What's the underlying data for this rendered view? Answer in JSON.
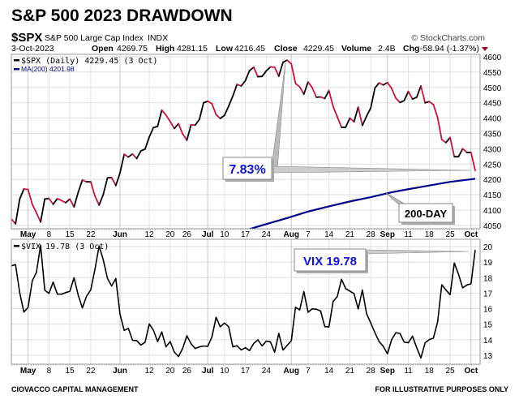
{
  "title": "S&P 500 2023 DRAWDOWN",
  "header": {
    "symbol": "$SPX",
    "name": "S&P 500 Large Cap Index",
    "exchange": "INDX",
    "copyright": "© StockCharts.com",
    "date": "3-Oct-2023",
    "open_label": "Open",
    "open": "4269.75",
    "high_label": "High",
    "high": "4281.15",
    "low_label": "Low",
    "low": "4216.45",
    "close_label": "Close",
    "close": "4229.45",
    "volume_label": "Volume",
    "volume": "2.4B",
    "chg_label": "Chg",
    "chg": "-58.94 (-1.37%)",
    "chg_color": "#a0002a"
  },
  "footer": {
    "left": "CIOVACCO CAPITAL MANAGEMENT",
    "right": "FOR ILLUSTRATIVE PURPOSES ONLY"
  },
  "annotations": {
    "drawdown": "7.83%",
    "ma_label": "200-DAY",
    "vix_label": "VIX 19.78",
    "text_color": "#1010e0"
  },
  "x_ticks": [
    {
      "date": "2023-05-01",
      "label": "May",
      "bold": true
    },
    {
      "date": "2023-05-08",
      "label": "8"
    },
    {
      "date": "2023-05-15",
      "label": "15"
    },
    {
      "date": "2023-05-22",
      "label": "22"
    },
    {
      "date": "2023-06-01",
      "label": "Jun",
      "bold": true
    },
    {
      "date": "2023-06-12",
      "label": "12"
    },
    {
      "date": "2023-06-20",
      "label": "20"
    },
    {
      "date": "2023-06-26",
      "label": "26"
    },
    {
      "date": "2023-07-03",
      "label": "Jul",
      "bold": true
    },
    {
      "date": "2023-07-10",
      "label": "10"
    },
    {
      "date": "2023-07-17",
      "label": "17"
    },
    {
      "date": "2023-07-24",
      "label": "24"
    },
    {
      "date": "2023-08-01",
      "label": "Aug",
      "bold": true
    },
    {
      "date": "2023-08-07",
      "label": "7"
    },
    {
      "date": "2023-08-14",
      "label": "14"
    },
    {
      "date": "2023-08-21",
      "label": "21"
    },
    {
      "date": "2023-08-28",
      "label": "28"
    },
    {
      "date": "2023-09-01",
      "label": "Sep",
      "bold": true
    },
    {
      "date": "2023-09-11",
      "label": "11"
    },
    {
      "date": "2023-09-18",
      "label": "18"
    },
    {
      "date": "2023-09-25",
      "label": "25"
    },
    {
      "date": "2023-10-02",
      "label": "Oct",
      "bold": true
    }
  ],
  "x": [
    "2023-04-25",
    "2023-04-26",
    "2023-04-27",
    "2023-04-28",
    "2023-05-01",
    "2023-05-02",
    "2023-05-03",
    "2023-05-04",
    "2023-05-05",
    "2023-05-08",
    "2023-05-09",
    "2023-05-10",
    "2023-05-11",
    "2023-05-12",
    "2023-05-15",
    "2023-05-16",
    "2023-05-17",
    "2023-05-18",
    "2023-05-19",
    "2023-05-22",
    "2023-05-23",
    "2023-05-24",
    "2023-05-25",
    "2023-05-26",
    "2023-05-30",
    "2023-05-31",
    "2023-06-01",
    "2023-06-02",
    "2023-06-05",
    "2023-06-06",
    "2023-06-07",
    "2023-06-08",
    "2023-06-09",
    "2023-06-12",
    "2023-06-13",
    "2023-06-14",
    "2023-06-15",
    "2023-06-16",
    "2023-06-20",
    "2023-06-21",
    "2023-06-22",
    "2023-06-23",
    "2023-06-26",
    "2023-06-27",
    "2023-06-28",
    "2023-06-29",
    "2023-06-30",
    "2023-07-03",
    "2023-07-05",
    "2023-07-06",
    "2023-07-07",
    "2023-07-10",
    "2023-07-11",
    "2023-07-12",
    "2023-07-13",
    "2023-07-14",
    "2023-07-17",
    "2023-07-18",
    "2023-07-19",
    "2023-07-20",
    "2023-07-21",
    "2023-07-24",
    "2023-07-25",
    "2023-07-26",
    "2023-07-27",
    "2023-07-28",
    "2023-07-31",
    "2023-08-01",
    "2023-08-02",
    "2023-08-03",
    "2023-08-04",
    "2023-08-07",
    "2023-08-08",
    "2023-08-09",
    "2023-08-10",
    "2023-08-11",
    "2023-08-14",
    "2023-08-15",
    "2023-08-16",
    "2023-08-17",
    "2023-08-18",
    "2023-08-21",
    "2023-08-22",
    "2023-08-23",
    "2023-08-24",
    "2023-08-25",
    "2023-08-28",
    "2023-08-29",
    "2023-08-30",
    "2023-08-31",
    "2023-09-01",
    "2023-09-05",
    "2023-09-06",
    "2023-09-07",
    "2023-09-08",
    "2023-09-11",
    "2023-09-12",
    "2023-09-13",
    "2023-09-14",
    "2023-09-15",
    "2023-09-18",
    "2023-09-19",
    "2023-09-20",
    "2023-09-21",
    "2023-09-22",
    "2023-09-25",
    "2023-09-26",
    "2023-09-27",
    "2023-09-28",
    "2023-09-29",
    "2023-10-02",
    "2023-10-03"
  ],
  "chart_data": [
    {
      "type": "line",
      "legend": [
        "$SPX (Daily) 4229.45 (3 Oct)",
        "MA(200) 4201.98"
      ],
      "legend_placement": "top-left",
      "grid": true,
      "ylim": [
        4039,
        4608
      ],
      "y_ticks": [
        4050,
        4100,
        4150,
        4200,
        4250,
        4300,
        4350,
        4400,
        4450,
        4500,
        4550,
        4600
      ],
      "up_color": "#000000",
      "down_color": "#d0103a",
      "ma_color": "#00008b",
      "series": [
        {
          "name": "$SPX",
          "values": [
            4071,
            4055,
            4136,
            4169,
            4167,
            4119,
            4091,
            4061,
            4136,
            4138,
            4119,
            4137,
            4131,
            4124,
            4136,
            4110,
            4158,
            4198,
            4192,
            4192,
            4146,
            4116,
            4151,
            4205,
            4206,
            4180,
            4221,
            4282,
            4273,
            4283,
            4268,
            4293,
            4299,
            4338,
            4369,
            4373,
            4426,
            4410,
            4389,
            4366,
            4382,
            4348,
            4328,
            4378,
            4377,
            4396,
            4450,
            4455,
            4447,
            4411,
            4399,
            4409,
            4439,
            4472,
            4510,
            4505,
            4522,
            4555,
            4566,
            4535,
            4536,
            4554,
            4567,
            4566,
            4537,
            4582,
            4589,
            4577,
            4513,
            4502,
            4478,
            4518,
            4499,
            4468,
            4469,
            4464,
            4490,
            4438,
            4404,
            4370,
            4370,
            4400,
            4388,
            4436,
            4376,
            4406,
            4433,
            4498,
            4515,
            4508,
            4516,
            4497,
            4465,
            4451,
            4457,
            4487,
            4462,
            4468,
            4505,
            4450,
            4454,
            4444,
            4402,
            4330,
            4320,
            4337,
            4274,
            4274,
            4300,
            4288,
            4288,
            4229
          ]
        },
        {
          "name": "MA(200)",
          "points": [
            [
              "2023-07-14",
              4030
            ],
            [
              "2023-07-21",
              4050
            ],
            [
              "2023-07-31",
              4074
            ],
            [
              "2023-08-07",
              4095
            ],
            [
              "2023-08-14",
              4112
            ],
            [
              "2023-08-21",
              4128
            ],
            [
              "2023-08-28",
              4142
            ],
            [
              "2023-09-05",
              4158
            ],
            [
              "2023-09-11",
              4168
            ],
            [
              "2023-09-18",
              4180
            ],
            [
              "2023-09-25",
              4192
            ],
            [
              "2023-10-03",
              4201.98
            ]
          ]
        }
      ]
    },
    {
      "type": "line",
      "legend": [
        "$VIX 19.78 (3 Oct)"
      ],
      "legend_placement": "top-left",
      "grid": true,
      "ylim": [
        12.42,
        20.47
      ],
      "y_ticks": [
        13,
        14,
        15,
        16,
        17,
        18,
        19,
        20
      ],
      "color": "#000000",
      "series": [
        {
          "name": "$VIX",
          "values": [
            18.76,
            18.84,
            17.03,
            15.78,
            16.08,
            17.78,
            18.34,
            20.09,
            17.19,
            16.98,
            17.71,
            16.94,
            16.93,
            17.03,
            17.12,
            17.99,
            16.87,
            16.05,
            16.81,
            17.21,
            18.53,
            20.03,
            19.14,
            17.95,
            17.46,
            17.94,
            15.65,
            14.6,
            14.73,
            13.96,
            13.94,
            13.65,
            13.83,
            15.01,
            14.61,
            13.88,
            14.5,
            13.54,
            13.88,
            13.2,
            12.91,
            13.44,
            14.25,
            13.74,
            13.43,
            13.54,
            13.59,
            13.57,
            14.18,
            15.44,
            14.83,
            15.07,
            14.84,
            13.54,
            13.61,
            13.34,
            13.48,
            13.3,
            13.76,
            13.99,
            13.6,
            13.91,
            13.86,
            13.19,
            14.41,
            13.33,
            13.63,
            13.93,
            16.09,
            15.92,
            17.1,
            15.77,
            15.99,
            15.96,
            15.85,
            14.84,
            14.82,
            16.46,
            16.78,
            17.89,
            17.3,
            17.13,
            16.97,
            15.98,
            17.2,
            15.68,
            15.08,
            14.45,
            13.88,
            13.57,
            13.09,
            14.0,
            14.45,
            14.4,
            13.84,
            13.8,
            14.23,
            13.48,
            12.82,
            13.79,
            14.0,
            14.11,
            15.14,
            17.54,
            17.2,
            16.9,
            18.94,
            18.22,
            17.34,
            17.52,
            17.61,
            19.78
          ]
        }
      ]
    }
  ]
}
